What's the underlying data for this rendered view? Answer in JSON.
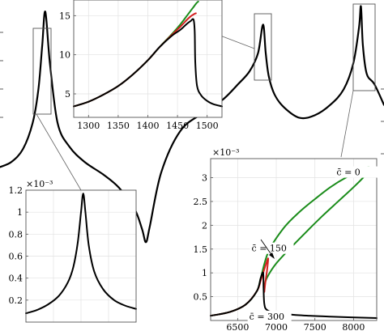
{
  "colors": {
    "main_curve": "#000000",
    "c0": "#1a8c1a",
    "c150": "#d42020",
    "c300": "#000000",
    "grid": "#e2e2e2",
    "frame": "#555555"
  },
  "chart_data": [
    {
      "id": "main",
      "type": "line",
      "title": "",
      "xlabel": "",
      "ylabel": "",
      "xlim": [
        0,
        1
      ],
      "ylim": [
        0,
        1
      ],
      "series": [
        {
          "color_key": "main_curve",
          "x": [
            0,
            0.03,
            0.06,
            0.085,
            0.1,
            0.11,
            0.118,
            0.13,
            0.15,
            0.18,
            0.22,
            0.27,
            0.31,
            0.35,
            0.37,
            0.38,
            0.39,
            0.42,
            0.47,
            0.53,
            0.58,
            0.62,
            0.65,
            0.672,
            0.685,
            0.692,
            0.7,
            0.715,
            0.74,
            0.78,
            0.82,
            0.86,
            0.895,
            0.92,
            0.935,
            0.94,
            0.945,
            0.955,
            0.975,
            1.0
          ],
          "y": [
            0.38,
            0.4,
            0.45,
            0.55,
            0.68,
            0.85,
            0.98,
            0.78,
            0.55,
            0.46,
            0.4,
            0.35,
            0.3,
            0.22,
            0.14,
            0.09,
            0.15,
            0.36,
            0.52,
            0.59,
            0.64,
            0.7,
            0.75,
            0.82,
            0.93,
            0.82,
            0.73,
            0.66,
            0.61,
            0.57,
            0.58,
            0.62,
            0.68,
            0.78,
            0.92,
            1.0,
            0.85,
            0.74,
            0.7,
            0.62
          ]
        }
      ]
    },
    {
      "id": "inset_top",
      "type": "line",
      "title": "",
      "xlabel": "",
      "ylabel": "",
      "xlim": [
        1275,
        1525
      ],
      "ylim": [
        2,
        17
      ],
      "x_ticks": [
        1300,
        1350,
        1400,
        1450,
        1500
      ],
      "y_ticks": [
        5,
        10,
        15
      ],
      "grid": true,
      "series": [
        {
          "color_key": "c0",
          "x": [
            1275,
            1300,
            1325,
            1350,
            1375,
            1400,
            1420,
            1440,
            1455,
            1465,
            1472,
            1478,
            1482,
            1485
          ],
          "y": [
            3.4,
            4.0,
            4.9,
            6.0,
            7.5,
            9.3,
            11.0,
            12.6,
            13.9,
            14.9,
            15.6,
            16.2,
            16.6,
            16.8
          ]
        },
        {
          "color_key": "c150",
          "x": [
            1275,
            1300,
            1325,
            1350,
            1375,
            1400,
            1420,
            1440,
            1455,
            1465,
            1472,
            1478,
            1481
          ],
          "y": [
            3.4,
            4.0,
            4.9,
            6.0,
            7.5,
            9.3,
            11.0,
            12.5,
            13.6,
            14.4,
            14.9,
            15.2,
            15.3
          ]
        },
        {
          "color_key": "c300",
          "x": [
            1275,
            1300,
            1325,
            1350,
            1375,
            1400,
            1420,
            1440,
            1455,
            1465,
            1472,
            1477,
            1479,
            1480,
            1483,
            1490,
            1500,
            1510,
            1525
          ],
          "y": [
            3.4,
            4.0,
            4.9,
            6.0,
            7.5,
            9.3,
            11.0,
            12.4,
            13.2,
            13.9,
            14.3,
            14.5,
            13.0,
            9.0,
            6.0,
            4.8,
            4.1,
            3.7,
            3.4
          ]
        }
      ]
    },
    {
      "id": "inset_bottom_left",
      "type": "line",
      "title": "",
      "xlabel": "",
      "ylabel": "",
      "y_scale_label": "×10⁻³",
      "xlim": [
        0,
        1
      ],
      "ylim": [
        0,
        1.2
      ],
      "y_ticks": [
        0.2,
        0.4,
        0.6,
        0.8,
        1,
        1.2
      ],
      "y_tick_labels": [
        "0.2",
        "0.4",
        "0.6",
        "0.8",
        "1",
        "1.2"
      ],
      "grid": true,
      "series": [
        {
          "color_key": "main_curve",
          "x": [
            0,
            0.1,
            0.2,
            0.3,
            0.38,
            0.43,
            0.47,
            0.5,
            0.52,
            0.54,
            0.57,
            0.62,
            0.7,
            0.8,
            0.9,
            1.0
          ],
          "y": [
            0.08,
            0.11,
            0.16,
            0.24,
            0.36,
            0.5,
            0.72,
            1.0,
            1.17,
            1.0,
            0.7,
            0.46,
            0.3,
            0.2,
            0.15,
            0.12
          ]
        }
      ]
    },
    {
      "id": "inset_bottom_right",
      "type": "line",
      "title": "",
      "xlabel": "",
      "ylabel": "",
      "y_scale_label": "×10⁻³",
      "xlim": [
        6150,
        8300
      ],
      "ylim": [
        0,
        3.4
      ],
      "x_ticks": [
        6500,
        7000,
        7500,
        8000
      ],
      "y_ticks": [
        0.5,
        1,
        1.5,
        2,
        2.5,
        3
      ],
      "y_tick_labels": [
        "0.5",
        "1",
        "1.5",
        "2",
        "2.5",
        "3"
      ],
      "grid": true,
      "annotations": [
        {
          "text": "c̄ = 0",
          "x": 7780,
          "y": 3.05
        },
        {
          "text": "c̄ = 150",
          "x": 6680,
          "y": 1.45
        },
        {
          "text": "c̄ = 300",
          "x": 6650,
          "y": 0.02
        }
      ],
      "series": [
        {
          "color_key": "c0",
          "x": [
            6150,
            6400,
            6600,
            6750,
            6800,
            6900,
            7100,
            7300,
            7500,
            7700,
            7900,
            8100,
            8200,
            8150,
            8000,
            7800,
            7600,
            7400,
            7200,
            7000,
            6880,
            6840
          ],
          "y": [
            0.1,
            0.18,
            0.33,
            0.62,
            0.9,
            1.45,
            1.95,
            2.28,
            2.55,
            2.8,
            3.0,
            3.15,
            3.22,
            3.05,
            2.8,
            2.5,
            2.2,
            1.88,
            1.55,
            1.2,
            0.9,
            0.7
          ]
        },
        {
          "color_key": "c150",
          "x": [
            6150,
            6400,
            6600,
            6750,
            6800,
            6840,
            6870,
            6895,
            6880,
            6860,
            6845
          ],
          "y": [
            0.1,
            0.18,
            0.33,
            0.62,
            0.85,
            1.05,
            1.2,
            1.3,
            1.05,
            0.82,
            0.6
          ]
        },
        {
          "color_key": "c300",
          "x": [
            6150,
            6400,
            6600,
            6750,
            6800,
            6830,
            6835,
            6845,
            6880,
            7000,
            7300,
            7700,
            8300
          ],
          "y": [
            0.1,
            0.18,
            0.33,
            0.62,
            0.9,
            1.0,
            0.7,
            0.35,
            0.22,
            0.16,
            0.11,
            0.08,
            0.05
          ]
        }
      ]
    }
  ],
  "arrow": {
    "from_label": "c̄ = 150"
  }
}
